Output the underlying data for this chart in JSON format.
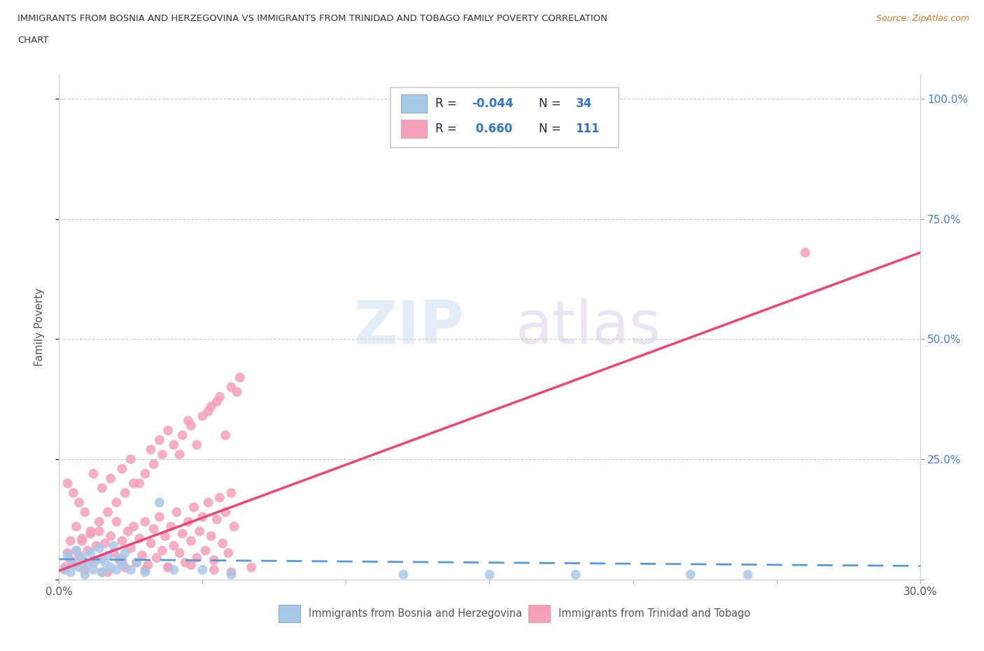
{
  "title_line1": "IMMIGRANTS FROM BOSNIA AND HERZEGOVINA VS IMMIGRANTS FROM TRINIDAD AND TOBAGO FAMILY POVERTY CORRELATION",
  "title_line2": "CHART",
  "source": "Source: ZipAtlas.com",
  "ylabel": "Family Poverty",
  "xlim": [
    0.0,
    0.3
  ],
  "ylim": [
    0.0,
    1.05
  ],
  "ytick_positions": [
    0.0,
    0.25,
    0.5,
    0.75,
    1.0
  ],
  "ytick_labels": [
    "",
    "25.0%",
    "50.0%",
    "75.0%",
    "100.0%"
  ],
  "color_bosnia": "#a8c8e8",
  "color_trinidad": "#f4a0b8",
  "line_color_bosnia": "#5599dd",
  "line_color_trinidad": "#ee4477",
  "R_bosnia": -0.044,
  "N_bosnia": 34,
  "R_trinidad": 0.66,
  "N_trinidad": 111,
  "bosnia_x": [
    0.002,
    0.003,
    0.004,
    0.005,
    0.006,
    0.007,
    0.008,
    0.009,
    0.01,
    0.011,
    0.012,
    0.013,
    0.014,
    0.015,
    0.016,
    0.017,
    0.018,
    0.019,
    0.02,
    0.021,
    0.022,
    0.023,
    0.025,
    0.027,
    0.03,
    0.035,
    0.04,
    0.05,
    0.06,
    0.12,
    0.15,
    0.18,
    0.22,
    0.24
  ],
  "bosnia_y": [
    0.02,
    0.05,
    0.015,
    0.035,
    0.06,
    0.025,
    0.045,
    0.01,
    0.03,
    0.055,
    0.02,
    0.04,
    0.065,
    0.015,
    0.035,
    0.05,
    0.025,
    0.07,
    0.02,
    0.045,
    0.03,
    0.055,
    0.02,
    0.035,
    0.015,
    0.16,
    0.02,
    0.02,
    0.01,
    0.01,
    0.01,
    0.01,
    0.01,
    0.01
  ],
  "trinidad_x": [
    0.002,
    0.003,
    0.004,
    0.005,
    0.006,
    0.007,
    0.008,
    0.009,
    0.01,
    0.011,
    0.012,
    0.013,
    0.014,
    0.015,
    0.016,
    0.017,
    0.018,
    0.019,
    0.02,
    0.021,
    0.022,
    0.023,
    0.024,
    0.025,
    0.026,
    0.027,
    0.028,
    0.029,
    0.03,
    0.031,
    0.032,
    0.033,
    0.034,
    0.035,
    0.036,
    0.037,
    0.038,
    0.039,
    0.04,
    0.041,
    0.042,
    0.043,
    0.044,
    0.045,
    0.046,
    0.047,
    0.048,
    0.049,
    0.05,
    0.051,
    0.052,
    0.053,
    0.054,
    0.055,
    0.056,
    0.057,
    0.058,
    0.059,
    0.06,
    0.061,
    0.003,
    0.005,
    0.007,
    0.009,
    0.012,
    0.015,
    0.018,
    0.022,
    0.025,
    0.028,
    0.032,
    0.035,
    0.038,
    0.042,
    0.045,
    0.048,
    0.052,
    0.055,
    0.058,
    0.062,
    0.004,
    0.006,
    0.008,
    0.011,
    0.014,
    0.017,
    0.02,
    0.023,
    0.026,
    0.03,
    0.033,
    0.036,
    0.04,
    0.043,
    0.046,
    0.05,
    0.053,
    0.056,
    0.06,
    0.063,
    0.002,
    0.008,
    0.015,
    0.022,
    0.03,
    0.038,
    0.046,
    0.054,
    0.06,
    0.067,
    0.26
  ],
  "trinidad_y": [
    0.025,
    0.055,
    0.08,
    0.03,
    0.11,
    0.05,
    0.085,
    0.02,
    0.06,
    0.095,
    0.035,
    0.07,
    0.1,
    0.045,
    0.075,
    0.015,
    0.09,
    0.055,
    0.12,
    0.04,
    0.08,
    0.025,
    0.1,
    0.065,
    0.11,
    0.035,
    0.085,
    0.05,
    0.12,
    0.03,
    0.075,
    0.105,
    0.045,
    0.13,
    0.06,
    0.09,
    0.025,
    0.11,
    0.07,
    0.14,
    0.055,
    0.095,
    0.035,
    0.12,
    0.08,
    0.15,
    0.045,
    0.1,
    0.13,
    0.06,
    0.16,
    0.09,
    0.04,
    0.125,
    0.17,
    0.075,
    0.14,
    0.055,
    0.18,
    0.11,
    0.2,
    0.18,
    0.16,
    0.14,
    0.22,
    0.19,
    0.21,
    0.23,
    0.25,
    0.2,
    0.27,
    0.29,
    0.31,
    0.26,
    0.33,
    0.28,
    0.35,
    0.37,
    0.3,
    0.39,
    0.04,
    0.06,
    0.08,
    0.1,
    0.12,
    0.14,
    0.16,
    0.18,
    0.2,
    0.22,
    0.24,
    0.26,
    0.28,
    0.3,
    0.32,
    0.34,
    0.36,
    0.38,
    0.4,
    0.42,
    0.02,
    0.035,
    0.015,
    0.04,
    0.02,
    0.025,
    0.03,
    0.02,
    0.015,
    0.025,
    0.68
  ]
}
